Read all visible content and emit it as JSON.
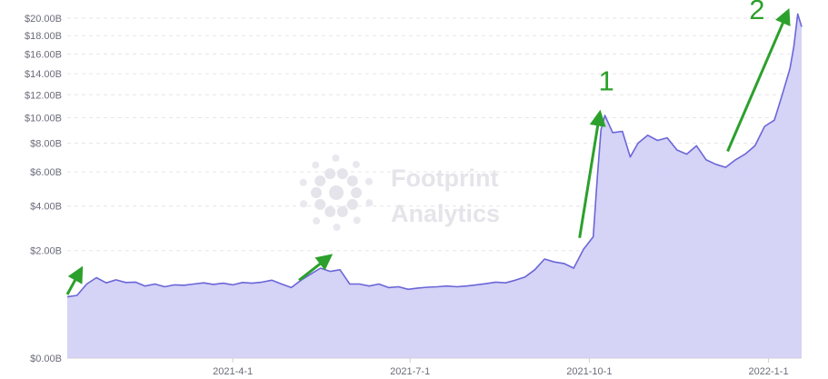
{
  "chart_data": {
    "type": "area",
    "y_scale": "sqrt",
    "ylim": [
      0,
      20
    ],
    "y_ticks": [
      {
        "value": 0,
        "label": "$0.00B"
      },
      {
        "value": 2,
        "label": "$2.00B"
      },
      {
        "value": 4,
        "label": "$4.00B"
      },
      {
        "value": 6,
        "label": "$6.00B"
      },
      {
        "value": 8,
        "label": "$8.00B"
      },
      {
        "value": 10,
        "label": "$10.00B"
      },
      {
        "value": 12,
        "label": "$12.00B"
      },
      {
        "value": 14,
        "label": "$14.00B"
      },
      {
        "value": 16,
        "label": "$16.00B"
      },
      {
        "value": 18,
        "label": "$18.00B"
      },
      {
        "value": 20,
        "label": "$20.00B"
      }
    ],
    "x_range": [
      "2021-01-06",
      "2022-01-18"
    ],
    "x_ticks": [
      {
        "date": "2021-04-01",
        "label": "2021-4-1"
      },
      {
        "date": "2021-07-01",
        "label": "2021-7-1"
      },
      {
        "date": "2021-10-01",
        "label": "2021-10-1"
      },
      {
        "date": "2022-01-01",
        "label": "2022-1-1"
      }
    ],
    "grid": true,
    "colors": {
      "line": "#6b66d8",
      "fill": "#d3d1f5",
      "annotation": "#2ca02c"
    },
    "series": [
      {
        "points": [
          [
            "2021-01-06",
            0.65
          ],
          [
            "2021-01-11",
            0.68
          ],
          [
            "2021-01-16",
            0.95
          ],
          [
            "2021-01-21",
            1.12
          ],
          [
            "2021-01-26",
            0.98
          ],
          [
            "2021-01-31",
            1.06
          ],
          [
            "2021-02-05",
            0.99
          ],
          [
            "2021-02-10",
            1.0
          ],
          [
            "2021-02-15",
            0.9
          ],
          [
            "2021-02-20",
            0.95
          ],
          [
            "2021-02-25",
            0.88
          ],
          [
            "2021-03-02",
            0.93
          ],
          [
            "2021-03-07",
            0.92
          ],
          [
            "2021-03-12",
            0.95
          ],
          [
            "2021-03-17",
            0.98
          ],
          [
            "2021-03-22",
            0.94
          ],
          [
            "2021-03-27",
            0.97
          ],
          [
            "2021-04-01",
            0.93
          ],
          [
            "2021-04-06",
            0.99
          ],
          [
            "2021-04-11",
            0.97
          ],
          [
            "2021-04-16",
            1.0
          ],
          [
            "2021-04-21",
            1.05
          ],
          [
            "2021-04-26",
            0.95
          ],
          [
            "2021-05-01",
            0.86
          ],
          [
            "2021-05-06",
            1.05
          ],
          [
            "2021-05-11",
            1.22
          ],
          [
            "2021-05-16",
            1.4
          ],
          [
            "2021-05-21",
            1.3
          ],
          [
            "2021-05-26",
            1.35
          ],
          [
            "2021-05-31",
            0.95
          ],
          [
            "2021-06-05",
            0.95
          ],
          [
            "2021-06-10",
            0.9
          ],
          [
            "2021-06-15",
            0.95
          ],
          [
            "2021-06-20",
            0.86
          ],
          [
            "2021-06-25",
            0.88
          ],
          [
            "2021-06-30",
            0.82
          ],
          [
            "2021-07-05",
            0.85
          ],
          [
            "2021-07-10",
            0.87
          ],
          [
            "2021-07-15",
            0.88
          ],
          [
            "2021-07-20",
            0.9
          ],
          [
            "2021-07-25",
            0.88
          ],
          [
            "2021-07-30",
            0.9
          ],
          [
            "2021-08-04",
            0.93
          ],
          [
            "2021-08-09",
            0.96
          ],
          [
            "2021-08-14",
            1.0
          ],
          [
            "2021-08-19",
            0.98
          ],
          [
            "2021-08-24",
            1.05
          ],
          [
            "2021-08-29",
            1.14
          ],
          [
            "2021-09-03",
            1.35
          ],
          [
            "2021-09-08",
            1.7
          ],
          [
            "2021-09-13",
            1.6
          ],
          [
            "2021-09-18",
            1.55
          ],
          [
            "2021-09-23",
            1.4
          ],
          [
            "2021-09-28",
            2.05
          ],
          [
            "2021-10-03",
            2.55
          ],
          [
            "2021-10-05",
            5.5
          ],
          [
            "2021-10-07",
            9.0
          ],
          [
            "2021-10-09",
            10.2
          ],
          [
            "2021-10-13",
            8.8
          ],
          [
            "2021-10-18",
            8.9
          ],
          [
            "2021-10-22",
            7.0
          ],
          [
            "2021-10-26",
            8.0
          ],
          [
            "2021-10-31",
            8.6
          ],
          [
            "2021-11-05",
            8.2
          ],
          [
            "2021-11-10",
            8.4
          ],
          [
            "2021-11-15",
            7.5
          ],
          [
            "2021-11-20",
            7.2
          ],
          [
            "2021-11-25",
            7.8
          ],
          [
            "2021-11-30",
            6.8
          ],
          [
            "2021-12-05",
            6.5
          ],
          [
            "2021-12-10",
            6.3
          ],
          [
            "2021-12-15",
            6.8
          ],
          [
            "2021-12-20",
            7.2
          ],
          [
            "2021-12-25",
            7.8
          ],
          [
            "2021-12-30",
            9.3
          ],
          [
            "2022-01-04",
            9.8
          ],
          [
            "2022-01-08",
            12.0
          ],
          [
            "2022-01-12",
            14.5
          ],
          [
            "2022-01-14",
            16.8
          ],
          [
            "2022-01-16",
            20.5
          ],
          [
            "2022-01-18",
            19.0
          ]
        ]
      }
    ],
    "annotations": [
      {
        "label": "",
        "from": [
          "2021-01-06",
          0.7
        ],
        "to": [
          "2021-01-12",
          1.25
        ]
      },
      {
        "label": "",
        "from": [
          "2021-05-05",
          1.05
        ],
        "to": [
          "2021-05-19",
          1.7
        ]
      },
      {
        "label": "1",
        "from": [
          "2021-09-26",
          2.5
        ],
        "to": [
          "2021-10-06",
          10.0
        ]
      },
      {
        "label": "2",
        "from": [
          "2021-12-11",
          7.4
        ],
        "to": [
          "2022-01-10",
          20.3
        ]
      }
    ],
    "watermark": {
      "line1": "Footprint",
      "line2": "Analytics"
    }
  }
}
